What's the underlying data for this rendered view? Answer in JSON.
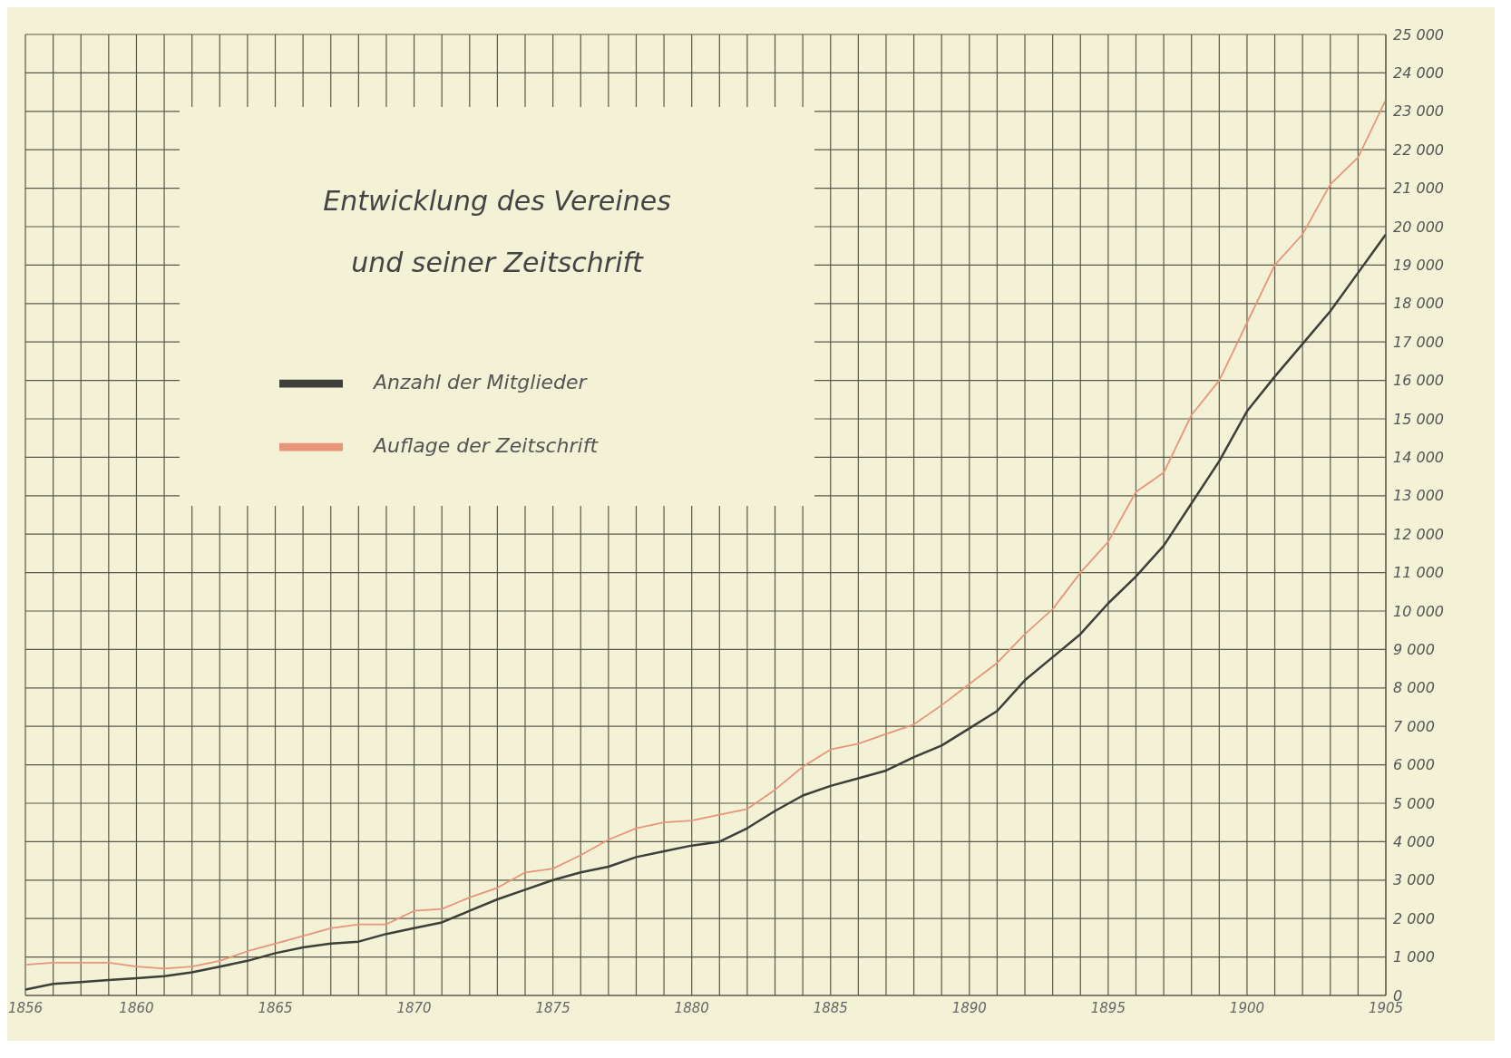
{
  "chart_data": {
    "type": "line",
    "title": "Entwicklung des Vereines und seiner Zeitschrift",
    "x": [
      1856,
      1857,
      1858,
      1859,
      1860,
      1861,
      1862,
      1863,
      1864,
      1865,
      1866,
      1867,
      1868,
      1869,
      1870,
      1871,
      1872,
      1873,
      1874,
      1875,
      1876,
      1877,
      1878,
      1879,
      1880,
      1881,
      1882,
      1883,
      1884,
      1885,
      1886,
      1887,
      1888,
      1889,
      1890,
      1891,
      1892,
      1893,
      1894,
      1895,
      1896,
      1897,
      1898,
      1899,
      1900,
      1901,
      1902,
      1903,
      1904,
      1905
    ],
    "series": [
      {
        "name": "Anzahl der Mitglieder",
        "color": "#3c3f3a",
        "values": [
          150,
          300,
          350,
          400,
          450,
          500,
          600,
          750,
          900,
          1100,
          1250,
          1350,
          1400,
          1600,
          1750,
          1900,
          2200,
          2500,
          2750,
          3000,
          3200,
          3350,
          3600,
          3750,
          3900,
          4000,
          4350,
          4800,
          5200,
          5450,
          5650,
          5850,
          6200,
          6500,
          6950,
          7400,
          8200,
          8800,
          9400,
          10200,
          10900,
          11700,
          12800,
          13900,
          15200,
          16100,
          16950,
          17800,
          18800,
          19800
        ]
      },
      {
        "name": "Auflage der Zeitschrift",
        "color": "#e8957a",
        "values": [
          800,
          850,
          850,
          850,
          750,
          700,
          750,
          900,
          1150,
          1350,
          1550,
          1750,
          1850,
          1850,
          2200,
          2250,
          2550,
          2800,
          3200,
          3300,
          3650,
          4050,
          4350,
          4500,
          4550,
          4700,
          4850,
          5350,
          5950,
          6400,
          6550,
          6800,
          7050,
          7550,
          8100,
          8650,
          9400,
          10050,
          11000,
          11800,
          13100,
          13600,
          15100,
          16000,
          17500,
          19000,
          19800,
          21100,
          21800,
          23300
        ]
      }
    ],
    "xlim": [
      1856,
      1905
    ],
    "xticks": [
      1856,
      {
        "value": 1857,
        "label": null
      },
      {
        "value": 1858,
        "label": null
      },
      {
        "value": 1859,
        "label": null
      },
      1860,
      {
        "value": 1861,
        "label": null
      },
      {
        "value": 1862,
        "label": null
      },
      {
        "value": 1863,
        "label": null
      },
      {
        "value": 1864,
        "label": null
      },
      1865,
      {
        "value": 1866,
        "label": null
      },
      {
        "value": 1867,
        "label": null
      },
      {
        "value": 1868,
        "label": null
      },
      {
        "value": 1869,
        "label": null
      },
      1870,
      {
        "value": 1871,
        "label": null
      },
      {
        "value": 1872,
        "label": null
      },
      {
        "value": 1873,
        "label": null
      },
      {
        "value": 1874,
        "label": null
      },
      1875,
      {
        "value": 1876,
        "label": null
      },
      {
        "value": 1877,
        "label": null
      },
      {
        "value": 1878,
        "label": null
      },
      {
        "value": 1879,
        "label": null
      },
      1880,
      {
        "value": 1881,
        "label": null
      },
      {
        "value": 1882,
        "label": null
      },
      {
        "value": 1883,
        "label": null
      },
      {
        "value": 1884,
        "label": null
      },
      1885,
      {
        "value": 1886,
        "label": null
      },
      {
        "value": 1887,
        "label": null
      },
      {
        "value": 1888,
        "label": null
      },
      {
        "value": 1889,
        "label": null
      },
      1890,
      {
        "value": 1891,
        "label": null
      },
      {
        "value": 1892,
        "label": null
      },
      {
        "value": 1893,
        "label": null
      },
      {
        "value": 1894,
        "label": null
      },
      1895,
      {
        "value": 1896,
        "label": null
      },
      {
        "value": 1897,
        "label": null
      },
      {
        "value": 1898,
        "label": null
      },
      {
        "value": 1899,
        "label": null
      },
      1900,
      {
        "value": 1901,
        "label": null
      },
      {
        "value": 1902,
        "label": null
      },
      {
        "value": 1903,
        "label": null
      },
      {
        "value": 1904,
        "label": null
      },
      1905
    ],
    "ylim": [
      0,
      25000
    ],
    "yticks": [
      0,
      {
        "value": 1000,
        "label": "1 000"
      },
      {
        "value": 2000,
        "label": "2 000"
      },
      {
        "value": 3000,
        "label": "3 000"
      },
      {
        "value": 4000,
        "label": "4 000"
      },
      {
        "value": 5000,
        "label": "5 000"
      },
      {
        "value": 6000,
        "label": "6 000"
      },
      {
        "value": 7000,
        "label": "7 000"
      },
      {
        "value": 8000,
        "label": "8 000"
      },
      {
        "value": 9000,
        "label": "9 000"
      },
      {
        "value": 10000,
        "label": "10 000"
      },
      {
        "value": 11000,
        "label": "11 000"
      },
      {
        "value": 12000,
        "label": "12 000"
      },
      {
        "value": 13000,
        "label": "13 000"
      },
      {
        "value": 14000,
        "label": "14 000"
      },
      {
        "value": 15000,
        "label": "15 000"
      },
      {
        "value": 16000,
        "label": "16 000"
      },
      {
        "value": 17000,
        "label": "17 000"
      },
      {
        "value": 18000,
        "label": "18 000"
      },
      {
        "value": 19000,
        "label": "19 000"
      },
      {
        "value": 20000,
        "label": "20 000"
      },
      {
        "value": 21000,
        "label": "21 000"
      },
      {
        "value": 22000,
        "label": "22 000"
      },
      {
        "value": 23000,
        "label": "23 000"
      },
      {
        "value": 24000,
        "label": "24 000"
      },
      {
        "value": 25000,
        "label": "25 000"
      }
    ],
    "grid": true,
    "legend": "top left",
    "marker": "none",
    "line_style": "solid"
  }
}
